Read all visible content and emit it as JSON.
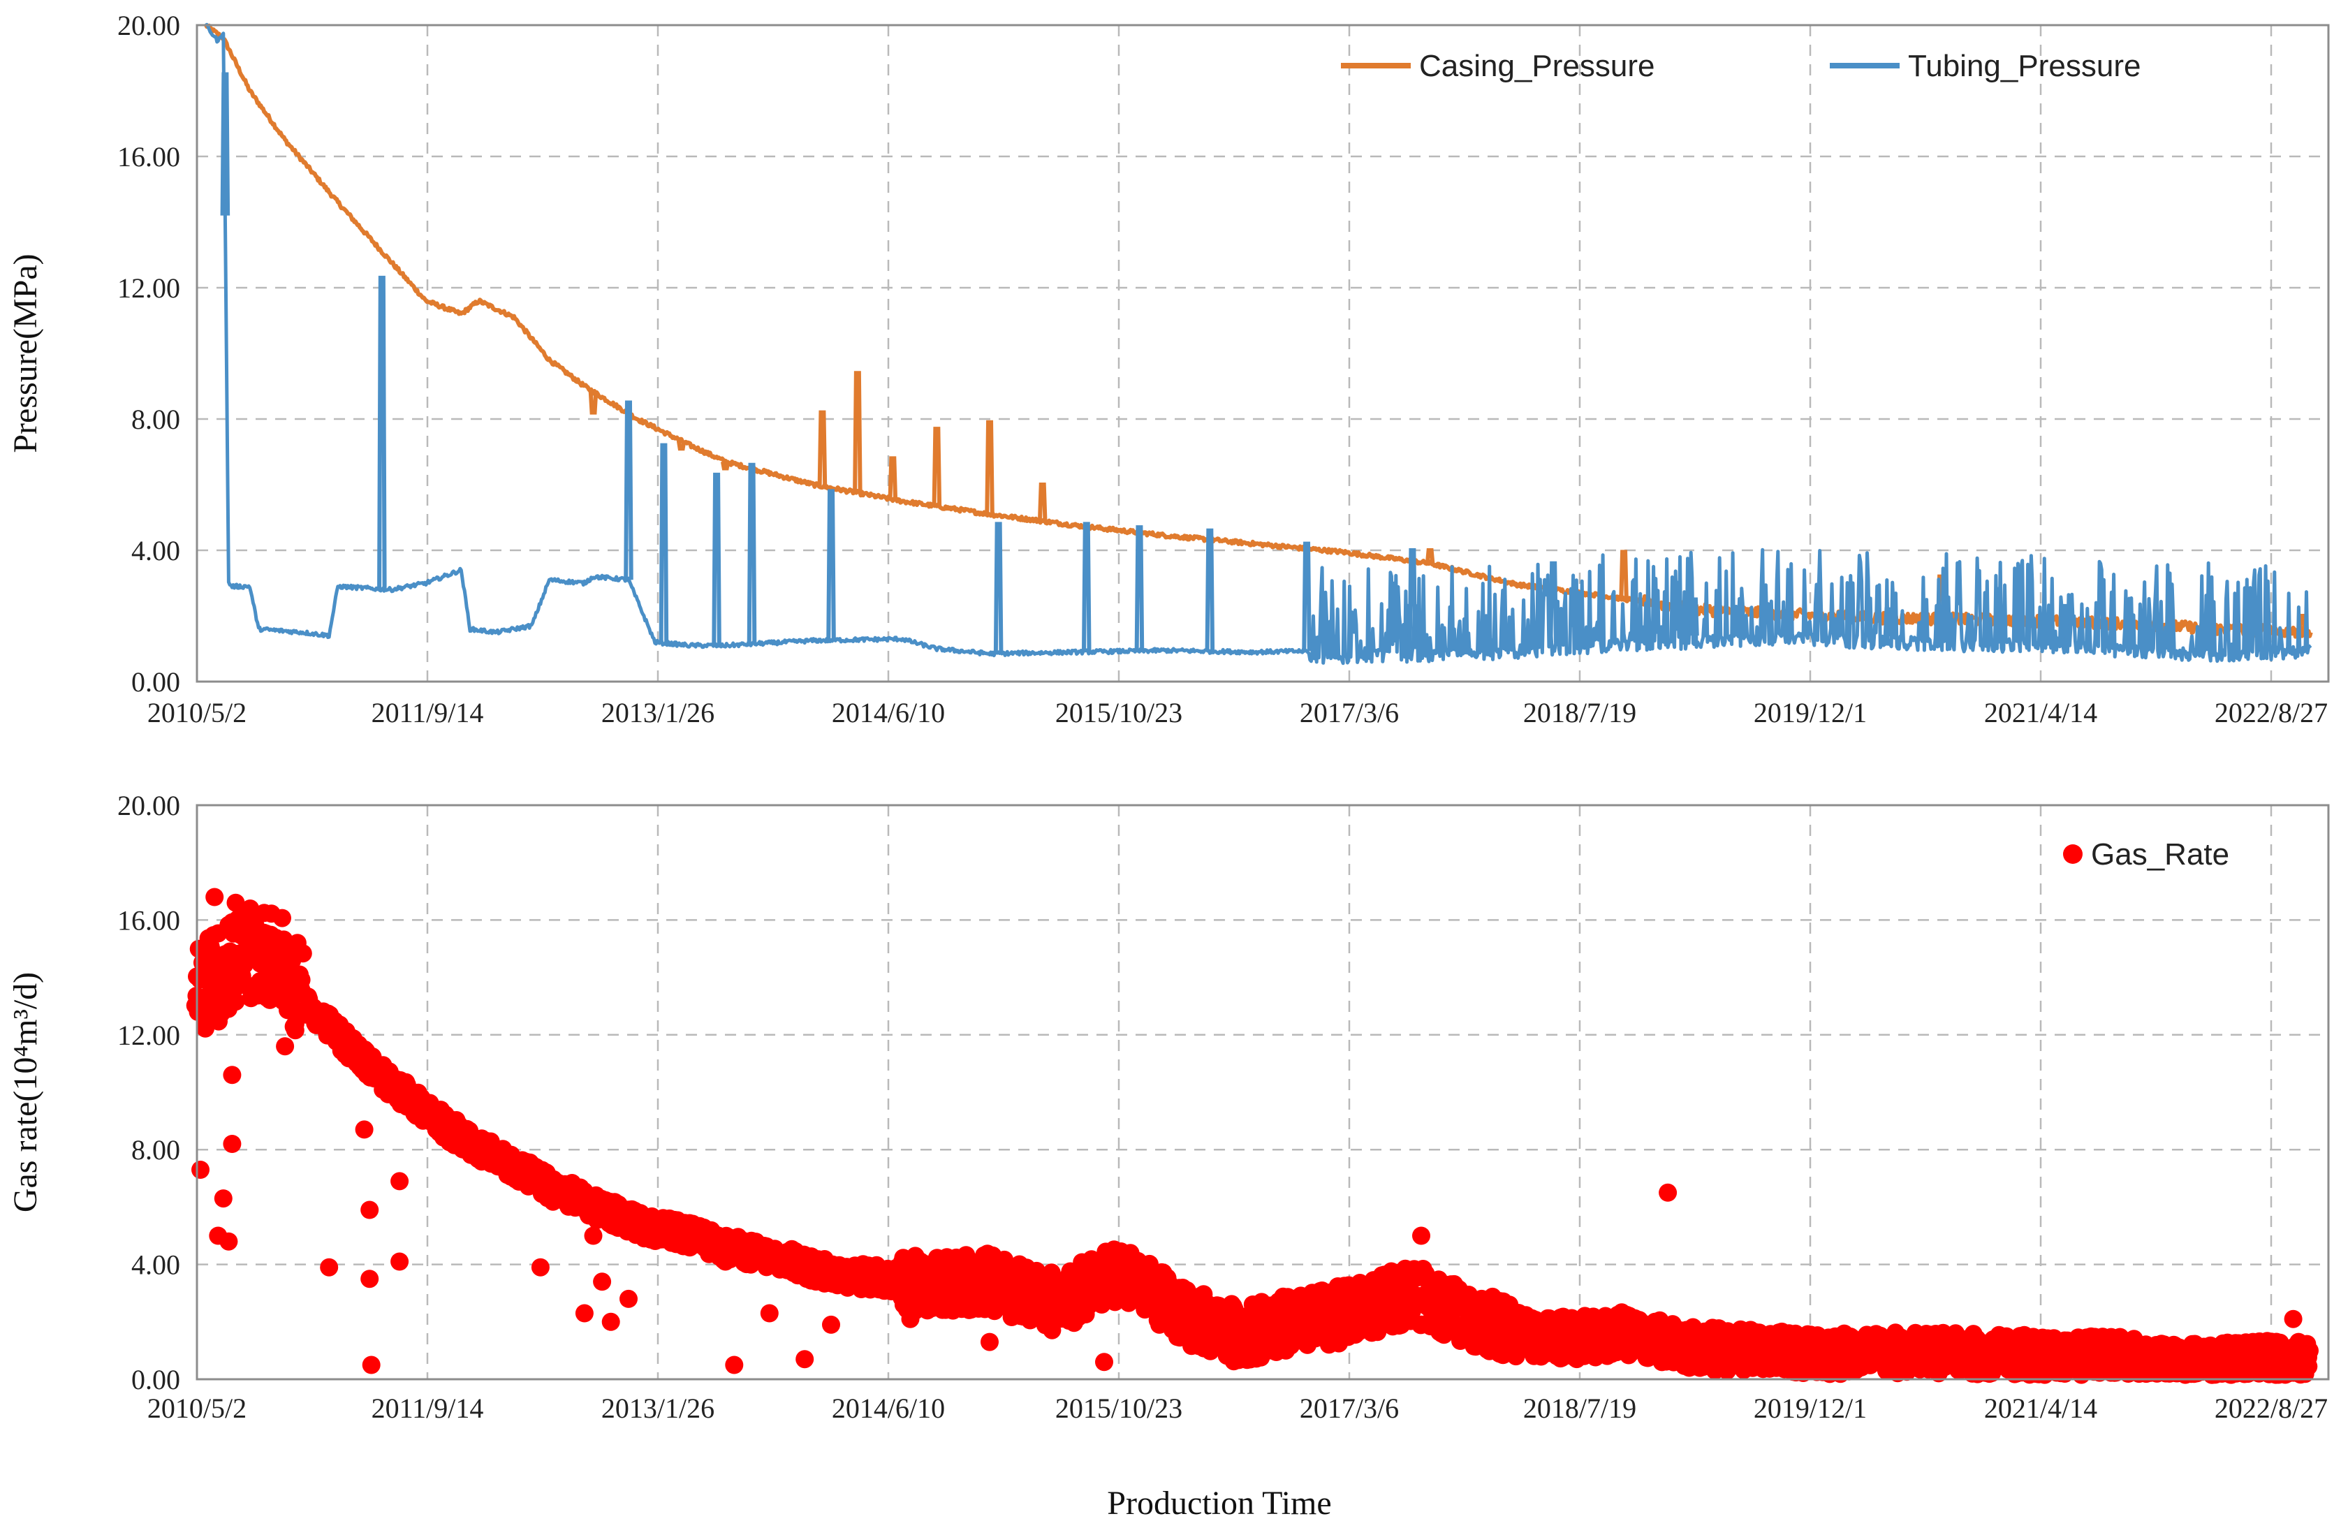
{
  "x_axis_title": "Production Time",
  "chart_data": [
    {
      "type": "line",
      "ylabel": "Pressure(MPa)",
      "ylim": [
        0,
        20
      ],
      "yticks": [
        "0.00",
        "4.00",
        "8.00",
        "12.00",
        "16.00",
        "20.00"
      ],
      "xticks": [
        "2010/5/2",
        "2011/9/14",
        "2013/1/26",
        "2014/6/10",
        "2015/10/23",
        "2017/3/6",
        "2018/7/19",
        "2019/12/1",
        "2021/4/14",
        "2022/8/27"
      ],
      "xrange": [
        0,
        12.1
      ],
      "grid": true,
      "legend_position": "top",
      "series": [
        {
          "name": "Casing_Pressure",
          "color": "#E07B2E",
          "x": [
            0.05,
            0.15,
            0.3,
            0.5,
            0.8,
            1.1,
            1.3,
            1.5,
            1.6,
            1.8,
            2.0,
            2.2,
            2.5,
            2.8,
            3.0,
            3.5,
            4.0,
            4.5,
            5.0,
            5.5,
            6.0,
            6.5,
            7.0,
            7.5,
            8.0,
            8.5,
            9.0,
            9.5,
            10.0,
            10.5,
            11.0,
            11.5,
            12.0
          ],
          "y": [
            20.0,
            19.6,
            18.0,
            16.5,
            14.6,
            12.8,
            11.6,
            11.2,
            11.6,
            11.1,
            9.8,
            9.0,
            8.0,
            7.2,
            6.7,
            6.0,
            5.5,
            5.1,
            4.75,
            4.45,
            4.2,
            3.95,
            3.6,
            2.95,
            2.6,
            2.2,
            2.05,
            1.95,
            1.9,
            1.85,
            1.75,
            1.6,
            1.5
          ],
          "spikes": [
            {
              "x": 2.25,
              "y": 8.2
            },
            {
              "x": 2.75,
              "y": 7.1
            },
            {
              "x": 3.0,
              "y": 6.5
            },
            {
              "x": 3.55,
              "y": 8.2
            },
            {
              "x": 3.75,
              "y": 9.4
            },
            {
              "x": 3.95,
              "y": 6.8
            },
            {
              "x": 4.2,
              "y": 7.7
            },
            {
              "x": 4.5,
              "y": 7.9
            },
            {
              "x": 4.8,
              "y": 6.0
            },
            {
              "x": 7.0,
              "y": 4.0
            },
            {
              "x": 8.1,
              "y": 3.95
            },
            {
              "x": 9.9,
              "y": 3.2
            },
            {
              "x": 11.95,
              "y": 2.0
            }
          ]
        },
        {
          "name": "Tubing_Pressure",
          "color": "#4A8FC7",
          "x": [
            0.05,
            0.12,
            0.15,
            0.18,
            0.2,
            0.3,
            0.35,
            0.6,
            0.75,
            0.8,
            1.1,
            1.3,
            1.35,
            1.5,
            1.55,
            1.7,
            1.9,
            2.0,
            2.2,
            2.25,
            2.45,
            2.6,
            2.8,
            3.0,
            3.5,
            4.0,
            4.2,
            4.5,
            5.0,
            5.5,
            6.0,
            6.5,
            7.0,
            7.5,
            8.0,
            8.5,
            9.0,
            9.5,
            10.0,
            10.5,
            11.0,
            11.5,
            12.0
          ],
          "y": [
            20.0,
            19.5,
            19.8,
            3.0,
            2.9,
            2.9,
            1.6,
            1.5,
            1.4,
            2.9,
            2.8,
            3.0,
            3.1,
            3.4,
            1.6,
            1.5,
            1.7,
            3.1,
            3.0,
            3.2,
            3.1,
            1.2,
            1.1,
            1.1,
            1.25,
            1.3,
            1.0,
            0.85,
            0.9,
            0.95,
            0.9,
            0.95,
            1.0,
            1.1,
            1.3,
            1.4,
            1.5,
            1.4,
            1.3,
            1.3,
            1.1,
            1.0,
            1.1
          ],
          "spikes": [
            {
              "x": 0.16,
              "y": 18.5
            },
            {
              "x": 1.05,
              "y": 12.3
            },
            {
              "x": 2.45,
              "y": 8.5
            },
            {
              "x": 2.65,
              "y": 7.2
            },
            {
              "x": 2.95,
              "y": 6.3
            },
            {
              "x": 3.15,
              "y": 6.6
            },
            {
              "x": 3.6,
              "y": 5.8
            },
            {
              "x": 4.55,
              "y": 4.8
            },
            {
              "x": 5.05,
              "y": 4.8
            },
            {
              "x": 5.35,
              "y": 4.7
            },
            {
              "x": 5.75,
              "y": 4.6
            },
            {
              "x": 6.3,
              "y": 4.2
            },
            {
              "x": 6.9,
              "y": 4.0
            },
            {
              "x": 7.7,
              "y": 3.6
            },
            {
              "x": 8.5,
              "y": 2.5
            },
            {
              "x": 9.6,
              "y": 2.2
            },
            {
              "x": 10.6,
              "y": 2.3
            }
          ]
        }
      ]
    },
    {
      "type": "scatter",
      "ylabel": "Gas rate(10⁴m³/d)",
      "ylim": [
        0,
        20
      ],
      "yticks": [
        "0.00",
        "4.00",
        "8.00",
        "12.00",
        "16.00",
        "20.00"
      ],
      "xticks": [
        "2010/5/2",
        "2011/9/14",
        "2013/1/26",
        "2014/6/10",
        "2015/10/23",
        "2017/3/6",
        "2018/7/19",
        "2019/12/1",
        "2021/4/14",
        "2022/8/27"
      ],
      "xrange": [
        0,
        12.1
      ],
      "grid": true,
      "legend_position": "top-right",
      "series": [
        {
          "name": "Gas_Rate",
          "color": "#FF0000",
          "trend_x": [
            0.0,
            0.1,
            0.2,
            0.3,
            0.45,
            0.6,
            0.8,
            1.0,
            1.2,
            1.5,
            1.8,
            2.0,
            2.2,
            2.5,
            2.8,
            3.0,
            3.3,
            3.6,
            3.9,
            4.2,
            4.5,
            4.7,
            4.9,
            5.1,
            5.3,
            5.6,
            5.9,
            6.1,
            6.3,
            6.6,
            6.9,
            7.2,
            7.5,
            7.8,
            8.1,
            8.4,
            8.7,
            9.0,
            9.3,
            9.6,
            9.9,
            10.2,
            10.5,
            10.8,
            11.1,
            11.4,
            11.7,
            12.0
          ],
          "trend_y": [
            13.5,
            14.0,
            14.5,
            14.8,
            14.8,
            13.2,
            12.0,
            10.8,
            9.8,
            8.4,
            7.4,
            6.7,
            6.2,
            5.4,
            5.0,
            4.6,
            4.2,
            3.7,
            3.5,
            3.3,
            3.4,
            3.0,
            2.6,
            3.5,
            3.6,
            2.2,
            1.6,
            1.8,
            2.0,
            2.4,
            3.0,
            2.2,
            1.6,
            1.4,
            1.6,
            1.2,
            1.0,
            1.0,
            0.9,
            0.9,
            0.9,
            0.8,
            0.8,
            0.8,
            0.6,
            0.5,
            0.6,
            0.6
          ],
          "outliers": [
            {
              "x": 0.02,
              "y": 7.3
            },
            {
              "x": 0.1,
              "y": 16.8
            },
            {
              "x": 0.12,
              "y": 5.0
            },
            {
              "x": 0.15,
              "y": 6.3
            },
            {
              "x": 0.18,
              "y": 4.8
            },
            {
              "x": 0.2,
              "y": 8.2
            },
            {
              "x": 0.2,
              "y": 10.6
            },
            {
              "x": 0.22,
              "y": 16.6
            },
            {
              "x": 0.5,
              "y": 11.6
            },
            {
              "x": 0.95,
              "y": 8.7
            },
            {
              "x": 0.98,
              "y": 5.9
            },
            {
              "x": 0.98,
              "y": 3.5
            },
            {
              "x": 0.99,
              "y": 0.5
            },
            {
              "x": 0.75,
              "y": 3.9
            },
            {
              "x": 1.15,
              "y": 4.1
            },
            {
              "x": 1.15,
              "y": 6.9
            },
            {
              "x": 1.95,
              "y": 3.9
            },
            {
              "x": 2.2,
              "y": 2.3
            },
            {
              "x": 2.25,
              "y": 5.0
            },
            {
              "x": 2.3,
              "y": 3.4
            },
            {
              "x": 2.35,
              "y": 2.0
            },
            {
              "x": 2.45,
              "y": 2.8
            },
            {
              "x": 3.0,
              "y": 4.1
            },
            {
              "x": 3.05,
              "y": 0.5
            },
            {
              "x": 3.25,
              "y": 2.3
            },
            {
              "x": 3.45,
              "y": 0.7
            },
            {
              "x": 3.6,
              "y": 1.9
            },
            {
              "x": 4.05,
              "y": 2.1
            },
            {
              "x": 4.35,
              "y": 2.5
            },
            {
              "x": 4.5,
              "y": 1.3
            },
            {
              "x": 5.15,
              "y": 0.6
            },
            {
              "x": 6.95,
              "y": 5.0
            },
            {
              "x": 8.35,
              "y": 6.5
            },
            {
              "x": 11.9,
              "y": 2.1
            }
          ]
        }
      ]
    }
  ]
}
